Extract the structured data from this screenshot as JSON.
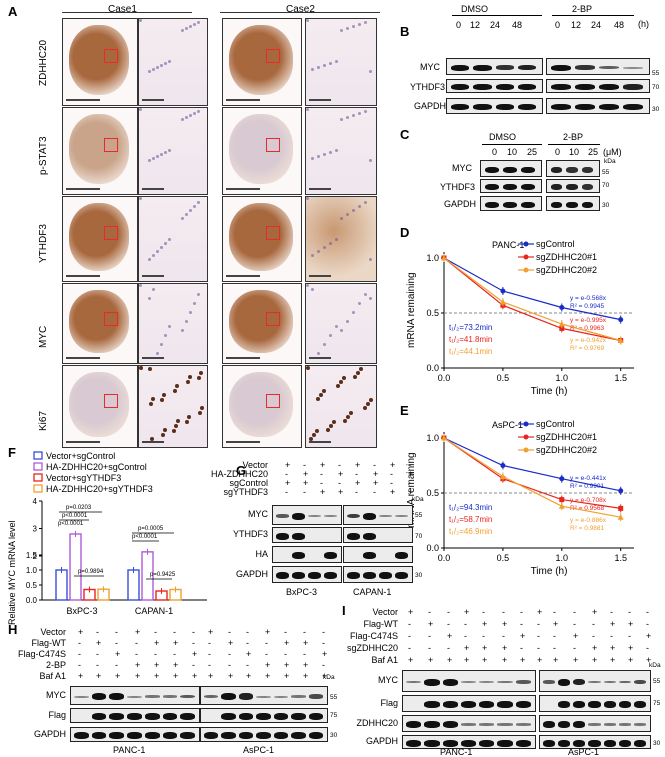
{
  "panelA": {
    "label": "A",
    "case1": "Case1",
    "case2": "Case2",
    "rows": [
      "ZDHHC20",
      "p-STAT3",
      "YTHDF3",
      "MYC",
      "Ki67"
    ]
  },
  "panelB": {
    "label": "B",
    "groups": [
      "DMSO",
      "2-BP"
    ],
    "ticks": [
      "0",
      "12",
      "24",
      "48",
      "0",
      "12",
      "24",
      "48"
    ],
    "unit": "(h)",
    "rows": [
      "MYC",
      "YTHDF3",
      "GAPDH"
    ],
    "kda": [
      "55",
      "70",
      "30"
    ]
  },
  "panelC": {
    "label": "C",
    "groups": [
      "DMSO",
      "2-BP"
    ],
    "ticks": [
      "0",
      "10",
      "25",
      "0",
      "10",
      "25"
    ],
    "unit": "(μM)",
    "kda_head": "kDa",
    "rows": [
      "MYC",
      "YTHDF3",
      "GAPDH"
    ],
    "kda": [
      "55",
      "70",
      "30"
    ]
  },
  "panelD": {
    "label": "D",
    "title": "PANC-1",
    "ylabel": "mRNA remaining",
    "xlabel": "Time (h)",
    "legend": [
      "sgControl",
      "sgZDHHC20#1",
      "sgZDHHC20#2"
    ],
    "equations": [
      [
        "y = e-0.568x",
        "R² = 0.9945"
      ],
      [
        "y = e-0.995x",
        "R² = 0.9963"
      ],
      [
        "y = e-0.942x",
        "R² = 0.9769"
      ]
    ],
    "halflife": [
      "t₁/₂=73.2min",
      "t₁/₂=41.8min",
      "t₁/₂=44.1min"
    ]
  },
  "panelE": {
    "label": "E",
    "title": "AsPC-1",
    "ylabel": "mRNA remaining",
    "xlabel": "Time (h)",
    "legend": [
      "sgControl",
      "sgZDHHC20#1",
      "sgZDHHC20#2"
    ],
    "equations": [
      [
        "y = e-0.441x",
        "R² = 0.9901"
      ],
      [
        "y = e-0.708x",
        "R² = 0.9568"
      ],
      [
        "y = e-0.886x",
        "R² = 0.9881"
      ]
    ],
    "halflife": [
      "t₁/₂=94.3min",
      "t₁/₂=58.7min",
      "t₁/₂=46.9min"
    ]
  },
  "panelF": {
    "label": "F",
    "ylabel": "Relative MYC mRNA level",
    "legend": [
      "Vector+sgControl",
      "HA-ZDHHC20+sgControl",
      "Vector+sgYTHDF3",
      "HA-ZDHHC20+sgYTHDF3"
    ],
    "cells": [
      "BxPC-3",
      "CAPAN-1"
    ],
    "pvals": [
      "p=0.0203",
      "p<0.0001",
      "p<0.0001",
      "p=0.9894",
      "p=0.0005",
      "p<0.0001",
      "p=0.9425"
    ],
    "yticks": [
      "0.0",
      "0.5",
      "1.0",
      "1.5",
      "2",
      "3",
      "4"
    ]
  },
  "panelG": {
    "label": "G",
    "conditions": [
      "Vector",
      "HA-ZDHHC20",
      "sgControl",
      "sgYTHDF3"
    ],
    "rows": [
      "MYC",
      "YTHDF3",
      "HA",
      "GAPDH"
    ],
    "kda_head": "kDa",
    "kda": [
      "55",
      "70",
      "30"
    ],
    "cells": [
      "BxPC-3",
      "CAPAN-1"
    ]
  },
  "panelH": {
    "label": "H",
    "conditions": [
      "Vector",
      "Flag-WT",
      "Flag-C474S",
      "2-BP",
      "Baf A1"
    ],
    "rows": [
      "MYC",
      "Flag",
      "GAPDH"
    ],
    "kda_head": "kDa",
    "kda": [
      "55",
      "75",
      "30"
    ],
    "cells": [
      "PANC-1",
      "AsPC-1"
    ]
  },
  "panelI": {
    "label": "I",
    "conditions": [
      "Vector",
      "Flag-WT",
      "Flag-C474S",
      "sgZDHHC20",
      "Baf A1"
    ],
    "rows": [
      "MYC",
      "Flag",
      "ZDHHC20",
      "GAPDH"
    ],
    "kda_head": "kDa",
    "kda": [
      "55",
      "75",
      "30"
    ],
    "cells": [
      "PANC-1",
      "AsPC-1"
    ]
  },
  "chart_data": [
    {
      "type": "line",
      "title": "PANC-1",
      "xlabel": "Time (h)",
      "ylabel": "mRNA remaining",
      "x": [
        0,
        0.5,
        1.0,
        1.5
      ],
      "xlim": [
        0,
        1.5
      ],
      "ylim": [
        0,
        1.0
      ],
      "series": [
        {
          "name": "sgControl",
          "values": [
            1.0,
            0.7,
            0.55,
            0.44
          ],
          "color": "#1a2bc7"
        },
        {
          "name": "sgZDHHC20#1",
          "values": [
            1.0,
            0.57,
            0.36,
            0.25
          ],
          "color": "#e8261e"
        },
        {
          "name": "sgZDHHC20#2",
          "values": [
            1.0,
            0.6,
            0.4,
            0.25
          ],
          "color": "#f0a030"
        }
      ]
    },
    {
      "type": "line",
      "title": "AsPC-1",
      "xlabel": "Time (h)",
      "ylabel": "mRNA remaining",
      "x": [
        0,
        0.5,
        1.0,
        1.5
      ],
      "xlim": [
        0,
        1.5
      ],
      "ylim": [
        0,
        1.0
      ],
      "series": [
        {
          "name": "sgControl",
          "values": [
            1.0,
            0.75,
            0.63,
            0.52
          ],
          "color": "#1a2bc7"
        },
        {
          "name": "sgZDHHC20#1",
          "values": [
            1.0,
            0.63,
            0.44,
            0.36
          ],
          "color": "#e8261e"
        },
        {
          "name": "sgZDHHC20#2",
          "values": [
            1.0,
            0.65,
            0.38,
            0.28
          ],
          "color": "#f0a030"
        }
      ]
    },
    {
      "type": "bar",
      "ylabel": "Relative MYC mRNA level",
      "categories": [
        "BxPC-3",
        "CAPAN-1"
      ],
      "series": [
        {
          "name": "Vector+sgControl",
          "values": [
            1.0,
            1.0
          ],
          "color": "#3a4fd8"
        },
        {
          "name": "HA-ZDHHC20+sgControl",
          "values": [
            2.8,
            2.15
          ],
          "color": "#b05ad8"
        },
        {
          "name": "Vector+sgYTHDF3",
          "values": [
            0.35,
            0.3
          ],
          "color": "#e8261e"
        },
        {
          "name": "HA-ZDHHC20+sgYTHDF3",
          "values": [
            0.36,
            0.35
          ],
          "color": "#f0a030"
        }
      ]
    }
  ]
}
